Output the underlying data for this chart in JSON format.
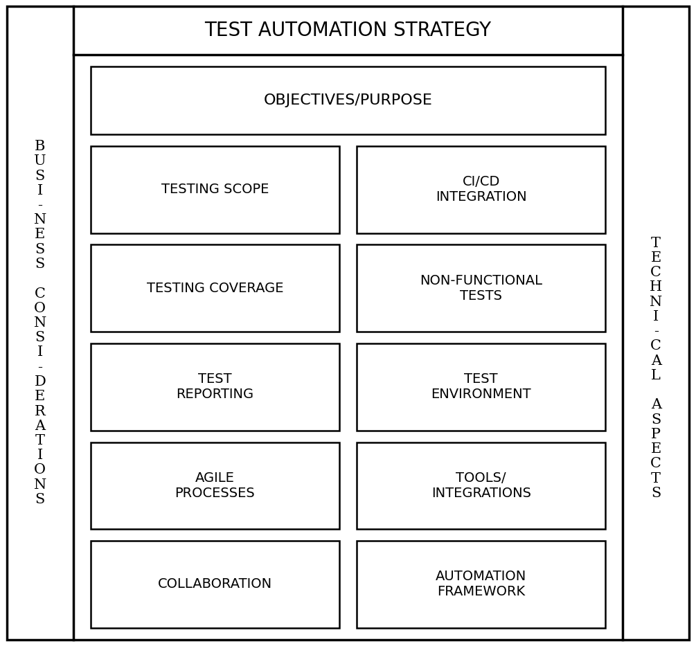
{
  "title": "TEST AUTOMATION STRATEGY",
  "left_label": "B\nU\nS\nI\n-\nN\nE\nS\nS\n \nC\nO\nN\nS\nI\n-\nD\nE\nR\nA\nT\nI\nO\nN\nS",
  "right_label": "T\nE\nC\nH\nN\nI\n-\nC\nA\nL\n \nA\nS\nP\nE\nC\nT\nS",
  "top_box": "OBJECTIVES/PURPOSE",
  "left_boxes": [
    "TESTING SCOPE",
    "TESTING COVERAGE",
    "TEST\nREPORTING",
    "AGILE\nPROCESSES",
    "COLLABORATION"
  ],
  "right_boxes": [
    "CI/CD\nINTEGRATION",
    "NON-FUNCTIONAL\nTESTS",
    "TEST\nENVIRONMENT",
    "TOOLS/\nINTEGRATIONS",
    "AUTOMATION\nFRAMEWORK"
  ],
  "bg_color": "#ffffff",
  "box_color": "#ffffff",
  "border_color": "#000000",
  "text_color": "#000000",
  "font_size_title": 20,
  "font_size_side": 15,
  "font_size_box": 14
}
